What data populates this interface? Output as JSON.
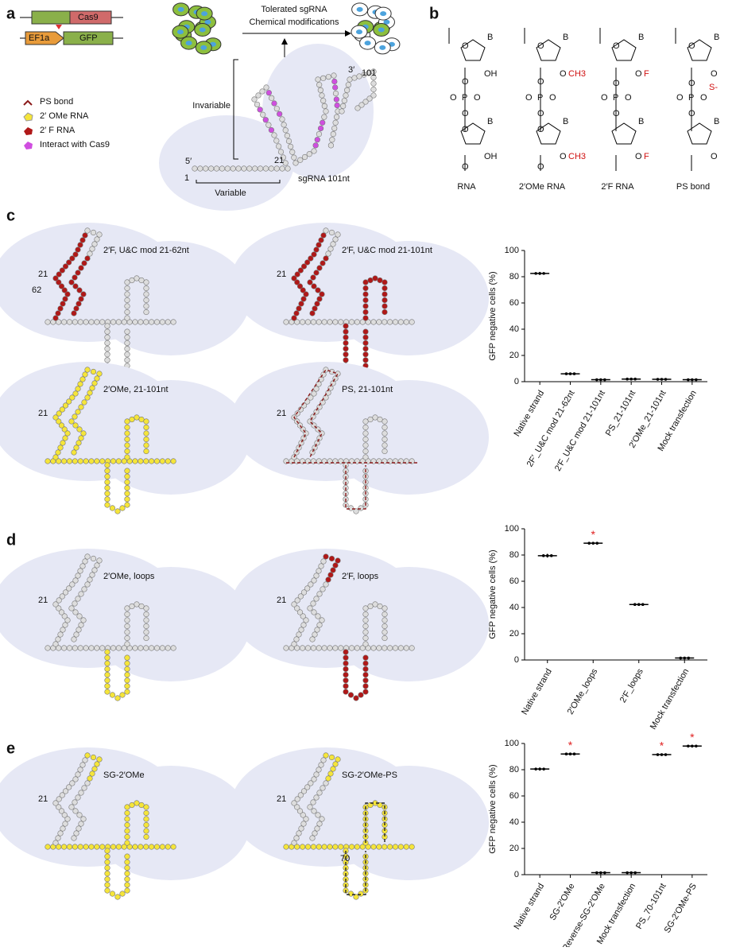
{
  "panel_labels": [
    "a",
    "b",
    "c",
    "d",
    "e"
  ],
  "panel_a": {
    "constructs": [
      "Cas9",
      "EF1a",
      "GFP"
    ],
    "arrow_text": [
      "Tolerated sgRNA",
      "Chemical modifications"
    ],
    "legend": [
      "PS bond",
      "2′ OMe RNA",
      "2′ F RNA",
      "Interact with Cas9"
    ],
    "schematic": [
      "Invariable",
      "Variable",
      "5′",
      "1",
      "21",
      "3′",
      "101",
      "sgRNA 101nt"
    ]
  },
  "panel_b": {
    "structures": [
      {
        "caption": "RNA",
        "atoms": [
          "O",
          "B",
          "OH",
          "O",
          "O",
          "P",
          "O",
          "O",
          "O",
          "B",
          "OH",
          "O"
        ],
        "mods": []
      },
      {
        "caption": "2′OMe RNA",
        "atoms": [
          "O",
          "B",
          "O",
          "O",
          "O",
          "P",
          "O",
          "O",
          "O",
          "B",
          "O",
          "O"
        ],
        "mods": [
          "CH3",
          "CH3"
        ]
      },
      {
        "caption": "2′F RNA",
        "atoms": [
          "O",
          "B",
          "O",
          "O",
          "P",
          "O",
          "O",
          "O",
          "B",
          "O"
        ],
        "mods": [
          "F",
          "F"
        ]
      },
      {
        "caption": "PS bond",
        "atoms": [
          "O",
          "B",
          "O",
          "O",
          "P",
          "O",
          "O",
          "O",
          "B",
          "O"
        ],
        "mods": [
          "S-"
        ]
      }
    ]
  },
  "diagrams": [
    {
      "label": "2′F, U&C mod 21-62nt",
      "numbers": [
        "21",
        "62"
      ]
    },
    {
      "label": "2′F, U&C mod 21-101nt",
      "numbers": [
        "21"
      ]
    },
    {
      "label": "2′OMe, 21-101nt",
      "numbers": [
        "21"
      ]
    },
    {
      "label": "PS, 21-101nt",
      "numbers": [
        "21"
      ]
    },
    {
      "label": "2′OMe, loops",
      "numbers": [
        "21"
      ]
    },
    {
      "label": "2′F, loops",
      "numbers": [
        "21"
      ]
    },
    {
      "label": "SG-2′OMe",
      "numbers": [
        "21"
      ]
    },
    {
      "label": "SG-2′OMe-PS",
      "numbers": [
        "21",
        "70"
      ]
    }
  ],
  "chart_data": [
    {
      "type": "dot",
      "ylabel": "GFP negative cells (%)",
      "categories": [
        "Native strand",
        "2F′_U&C mod 21-62nt",
        "2′F_U&C mod 21-101nt",
        "PS_21-101nt",
        "2′OMe_21-101nt",
        "Mock transfection"
      ],
      "values": [
        82.5,
        6,
        1.5,
        2,
        1.8,
        1.5
      ],
      "errors": [
        1.2,
        0.3,
        0.3,
        0.3,
        0.3,
        0.3
      ],
      "color": "#000000",
      "ylim": [
        0,
        100
      ],
      "yticks": [
        0,
        20,
        40,
        60,
        80,
        100
      ]
    },
    {
      "type": "dot",
      "ylabel": "GFP negative cells (%)",
      "categories": [
        "Native strand",
        "2′OMe_loops",
        "2′F_loops",
        "Mock transfection"
      ],
      "values": [
        79.5,
        89,
        42.3,
        1.5
      ],
      "errors": [
        1.5,
        0.3,
        0.4,
        0.5
      ],
      "color": "#000000",
      "ylim": [
        0,
        100
      ],
      "yticks": [
        0,
        20,
        40,
        60,
        80,
        100
      ],
      "annotations": [
        {
          "category": "2′OMe_loops",
          "text": "*"
        }
      ]
    },
    {
      "type": "dot",
      "ylabel": "GFP negative cells (%)",
      "categories": [
        "Native strand",
        "SG-2′OMe",
        "Reverse-SG-2′OMe",
        "Mock transfection",
        "PS_70-101nt",
        "SG-2′OMe-PS"
      ],
      "values": [
        80.5,
        92,
        1.5,
        1.5,
        91.5,
        98
      ],
      "errors": [
        1.2,
        0.4,
        0.3,
        0.3,
        0.4,
        0.3
      ],
      "color": "#000000",
      "ylim": [
        0,
        100
      ],
      "yticks": [
        0,
        20,
        40,
        60,
        80,
        100
      ],
      "annotations": [
        {
          "category": "SG-2′OMe",
          "text": "*"
        },
        {
          "category": "PS_70-101nt",
          "text": "*"
        },
        {
          "category": "SG-2′OMe-PS",
          "text": "*"
        }
      ]
    }
  ]
}
